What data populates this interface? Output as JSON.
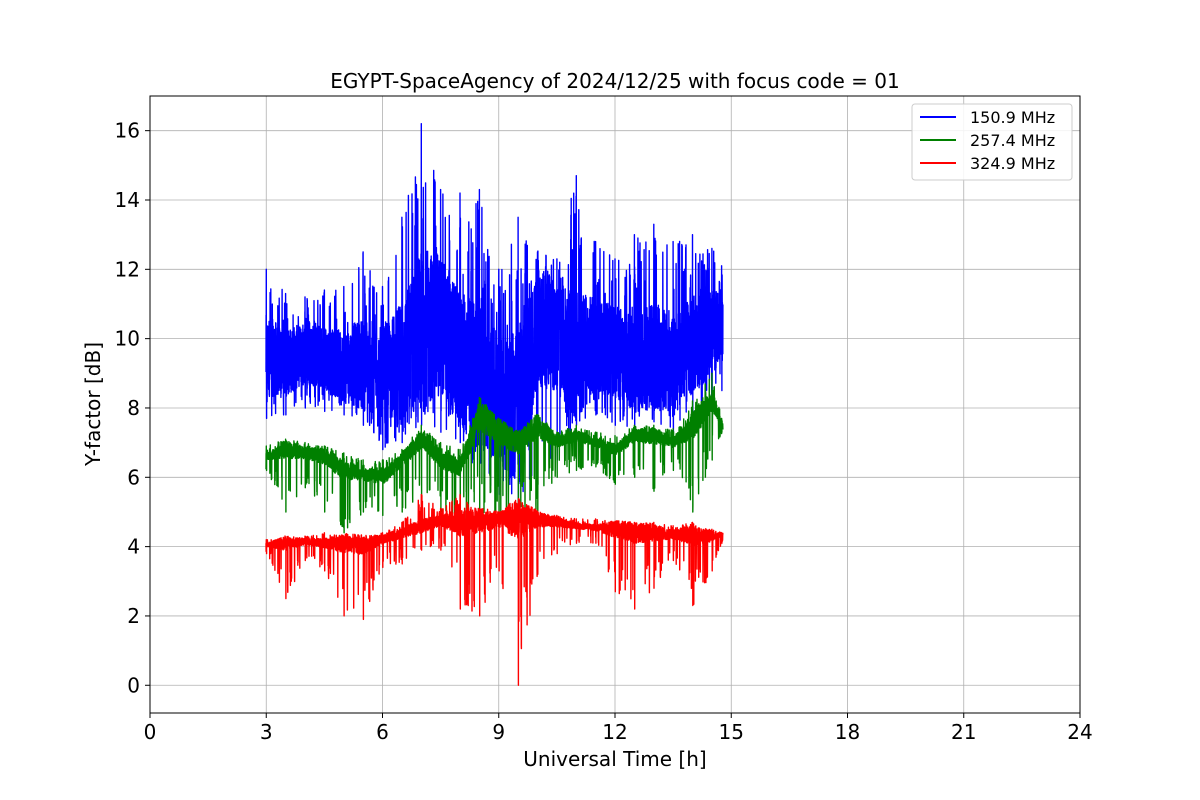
{
  "chart_data": {
    "type": "line",
    "title": "EGYPT-SpaceAgency of 2024/12/25 with focus code = 01",
    "xlabel": "Universal Time [h]",
    "ylabel": "Y-factor [dB]",
    "xlim": [
      0,
      24
    ],
    "ylim": [
      -0.8,
      17
    ],
    "xticks": [
      0,
      3,
      6,
      9,
      12,
      15,
      18,
      21,
      24
    ],
    "yticks": [
      0,
      2,
      4,
      6,
      8,
      10,
      12,
      14,
      16
    ],
    "grid": true,
    "legend_position": "top-right",
    "series": [
      {
        "name": "150.9 MHz",
        "color": "#0000ff",
        "x": [
          3.0,
          3.5,
          4.0,
          4.5,
          5.0,
          5.5,
          6.0,
          6.5,
          7.0,
          7.5,
          8.0,
          8.5,
          9.0,
          9.5,
          10.0,
          10.5,
          11.0,
          11.5,
          12.0,
          12.5,
          13.0,
          13.5,
          14.0,
          14.5,
          14.75
        ],
        "y": [
          9.5,
          9.3,
          9.6,
          9.4,
          9.2,
          9.3,
          9.0,
          9.3,
          10.2,
          10.5,
          9.3,
          9.0,
          8.2,
          8.0,
          10.3,
          10.0,
          9.4,
          9.8,
          9.6,
          9.4,
          9.5,
          9.2,
          9.8,
          10.2,
          10.3
        ],
        "y_min": [
          7.7,
          7.8,
          8.0,
          7.9,
          7.8,
          7.5,
          6.8,
          7.0,
          7.5,
          7.3,
          7.0,
          6.0,
          5.5,
          5.0,
          6.5,
          6.5,
          7.5,
          7.8,
          7.5,
          7.4,
          7.6,
          7.3,
          7.8,
          8.2,
          8.5
        ],
        "y_max": [
          12.0,
          11.3,
          11.2,
          11.4,
          11.5,
          12.5,
          11.5,
          13.5,
          16.2,
          14.3,
          14.2,
          14.3,
          12.0,
          13.5,
          12.5,
          12.3,
          14.7,
          12.8,
          12.3,
          13.0,
          13.3,
          12.8,
          13.0,
          12.6,
          12.1
        ]
      },
      {
        "name": "257.4 MHz",
        "color": "#008000",
        "x": [
          3.0,
          3.5,
          4.0,
          4.5,
          5.0,
          5.5,
          6.0,
          6.5,
          7.0,
          7.5,
          8.0,
          8.5,
          9.0,
          9.5,
          10.0,
          10.5,
          11.0,
          11.5,
          12.0,
          12.5,
          13.0,
          13.5,
          14.0,
          14.5,
          14.75
        ],
        "y": [
          6.6,
          6.8,
          6.7,
          6.6,
          6.2,
          6.1,
          6.0,
          6.5,
          7.1,
          6.5,
          6.3,
          7.8,
          7.3,
          7.0,
          7.5,
          7.0,
          7.2,
          7.0,
          6.8,
          7.2,
          7.2,
          7.0,
          7.5,
          8.2,
          7.5
        ],
        "y_min": [
          6.2,
          5.0,
          5.7,
          5.0,
          4.4,
          5.0,
          4.9,
          5.0,
          5.5,
          5.0,
          4.6,
          4.9,
          4.6,
          4.6,
          5.0,
          6.0,
          6.2,
          6.3,
          5.8,
          6.0,
          5.6,
          6.2,
          5.0,
          6.5,
          7.3
        ],
        "y_max": [
          6.9,
          7.1,
          7.0,
          6.9,
          6.7,
          6.5,
          6.5,
          6.8,
          7.5,
          7.0,
          6.8,
          8.3,
          7.7,
          7.3,
          7.8,
          7.3,
          7.5,
          7.3,
          7.2,
          7.5,
          7.5,
          7.4,
          8.2,
          9.0,
          7.7
        ]
      },
      {
        "name": "324.9 MHz",
        "color": "#ff0000",
        "x": [
          3.0,
          3.5,
          4.0,
          4.5,
          5.0,
          5.5,
          6.0,
          6.5,
          7.0,
          7.5,
          8.0,
          8.5,
          9.0,
          9.5,
          10.0,
          10.5,
          11.0,
          11.5,
          12.0,
          12.5,
          13.0,
          13.5,
          14.0,
          14.5,
          14.75
        ],
        "y": [
          4.05,
          4.1,
          4.15,
          4.1,
          4.1,
          4.05,
          4.2,
          4.4,
          4.6,
          4.75,
          4.7,
          4.75,
          4.8,
          4.8,
          4.8,
          4.7,
          4.6,
          4.55,
          4.5,
          4.4,
          4.4,
          4.35,
          4.3,
          4.3,
          4.35
        ],
        "y_min": [
          3.8,
          2.5,
          3.6,
          3.3,
          2.0,
          1.9,
          3.4,
          3.5,
          3.9,
          3.9,
          2.2,
          2.0,
          3.3,
          0.0,
          3.2,
          3.8,
          4.1,
          4.1,
          2.7,
          2.2,
          2.8,
          3.6,
          2.3,
          3.3,
          4.1
        ],
        "y_max": [
          4.2,
          4.2,
          4.3,
          4.4,
          4.3,
          4.2,
          4.4,
          4.7,
          5.5,
          5.1,
          5.5,
          5.0,
          5.0,
          5.0,
          5.0,
          4.9,
          4.8,
          4.8,
          4.7,
          4.7,
          4.7,
          4.6,
          4.7,
          4.5,
          4.4
        ]
      }
    ]
  }
}
